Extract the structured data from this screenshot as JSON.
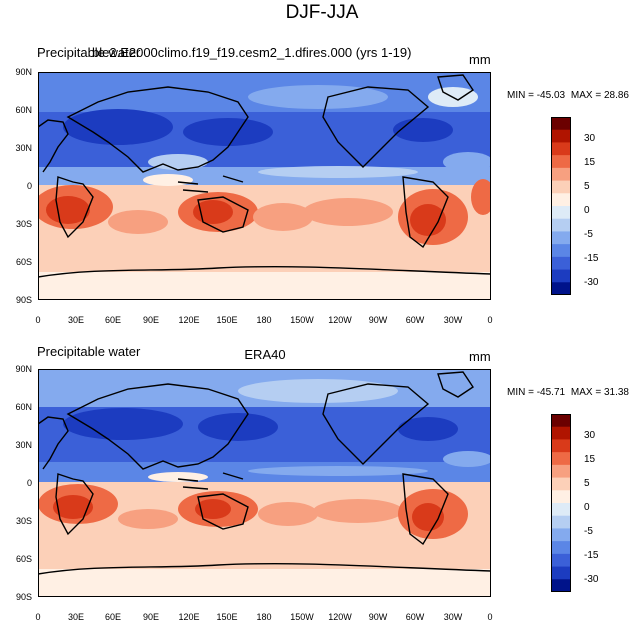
{
  "main_title": "DJF-JJA",
  "panels": [
    {
      "left_title": "Precipitable water",
      "center_title": "ble2.E2000climo.f19_f19.cesm2_1.dfires.000 (yrs 1-19)",
      "units": "mm",
      "min_label": "MIN = -45.03",
      "max_label": "MAX =  28.86"
    },
    {
      "left_title": "Precipitable water",
      "center_title": "ERA40",
      "units": "mm",
      "min_label": "MIN = -45.71",
      "max_label": "MAX = 31.38"
    }
  ],
  "lat_ticks": [
    "90N",
    "60N",
    "30N",
    "0",
    "30S",
    "60S",
    "90S"
  ],
  "lon_ticks": [
    "0",
    "30E",
    "60E",
    "90E",
    "120E",
    "150E",
    "180",
    "150W",
    "120W",
    "90W",
    "60W",
    "30W",
    "0"
  ],
  "colorbar": {
    "labels": [
      "30",
      "15",
      "5",
      "0",
      "-5",
      "-15",
      "-30"
    ],
    "colors": [
      "#6b0000",
      "#b01400",
      "#d93a1a",
      "#ee6a45",
      "#f7a080",
      "#fcd0b8",
      "#fff0e4",
      "#deebf7",
      "#b5cef2",
      "#84aaee",
      "#5b86e6",
      "#3b60d8",
      "#1c3cc0",
      "#00138a"
    ]
  }
}
